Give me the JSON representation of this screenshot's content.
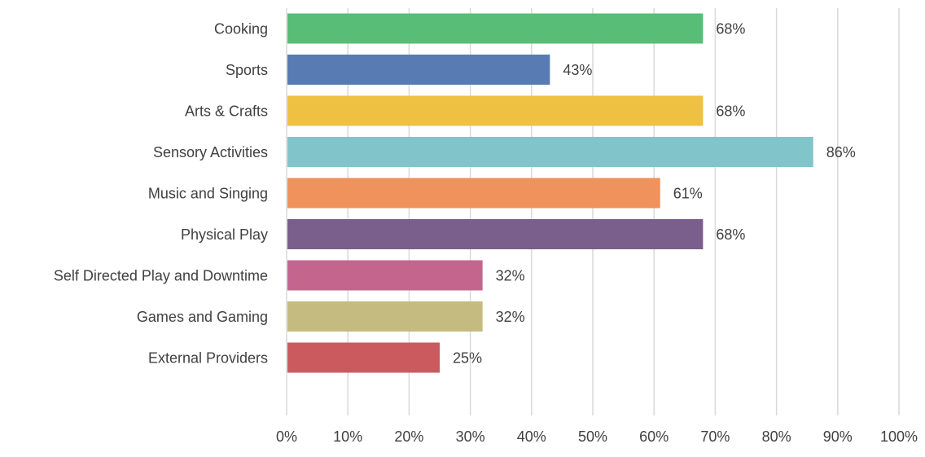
{
  "chart_data": {
    "type": "bar",
    "orientation": "horizontal",
    "title": "",
    "xlabel": "",
    "ylabel": "",
    "xlim": [
      0,
      100
    ],
    "grid": true,
    "legend": "none",
    "x_ticks": [
      "0%",
      "10%",
      "20%",
      "30%",
      "40%",
      "50%",
      "60%",
      "70%",
      "80%",
      "90%",
      "100%"
    ],
    "categories": [
      "Cooking",
      "Sports",
      "Arts & Crafts",
      "Sensory Activities",
      "Music and Singing",
      "Physical Play",
      "Self Directed Play and Downtime",
      "Games and Gaming",
      "External Providers"
    ],
    "values": [
      68,
      43,
      68,
      86,
      61,
      68,
      32,
      32,
      25
    ],
    "value_labels": [
      "68%",
      "43%",
      "68%",
      "86%",
      "61%",
      "68%",
      "32%",
      "32%",
      "25%"
    ],
    "colors": [
      "#58bd76",
      "#597bb3",
      "#efc142",
      "#81c4ca",
      "#ef925c",
      "#7a5e8c",
      "#c4658e",
      "#c5bb81",
      "#cb5a5e"
    ],
    "grid_color": "#d9d9d9",
    "text_color": "#404040"
  }
}
